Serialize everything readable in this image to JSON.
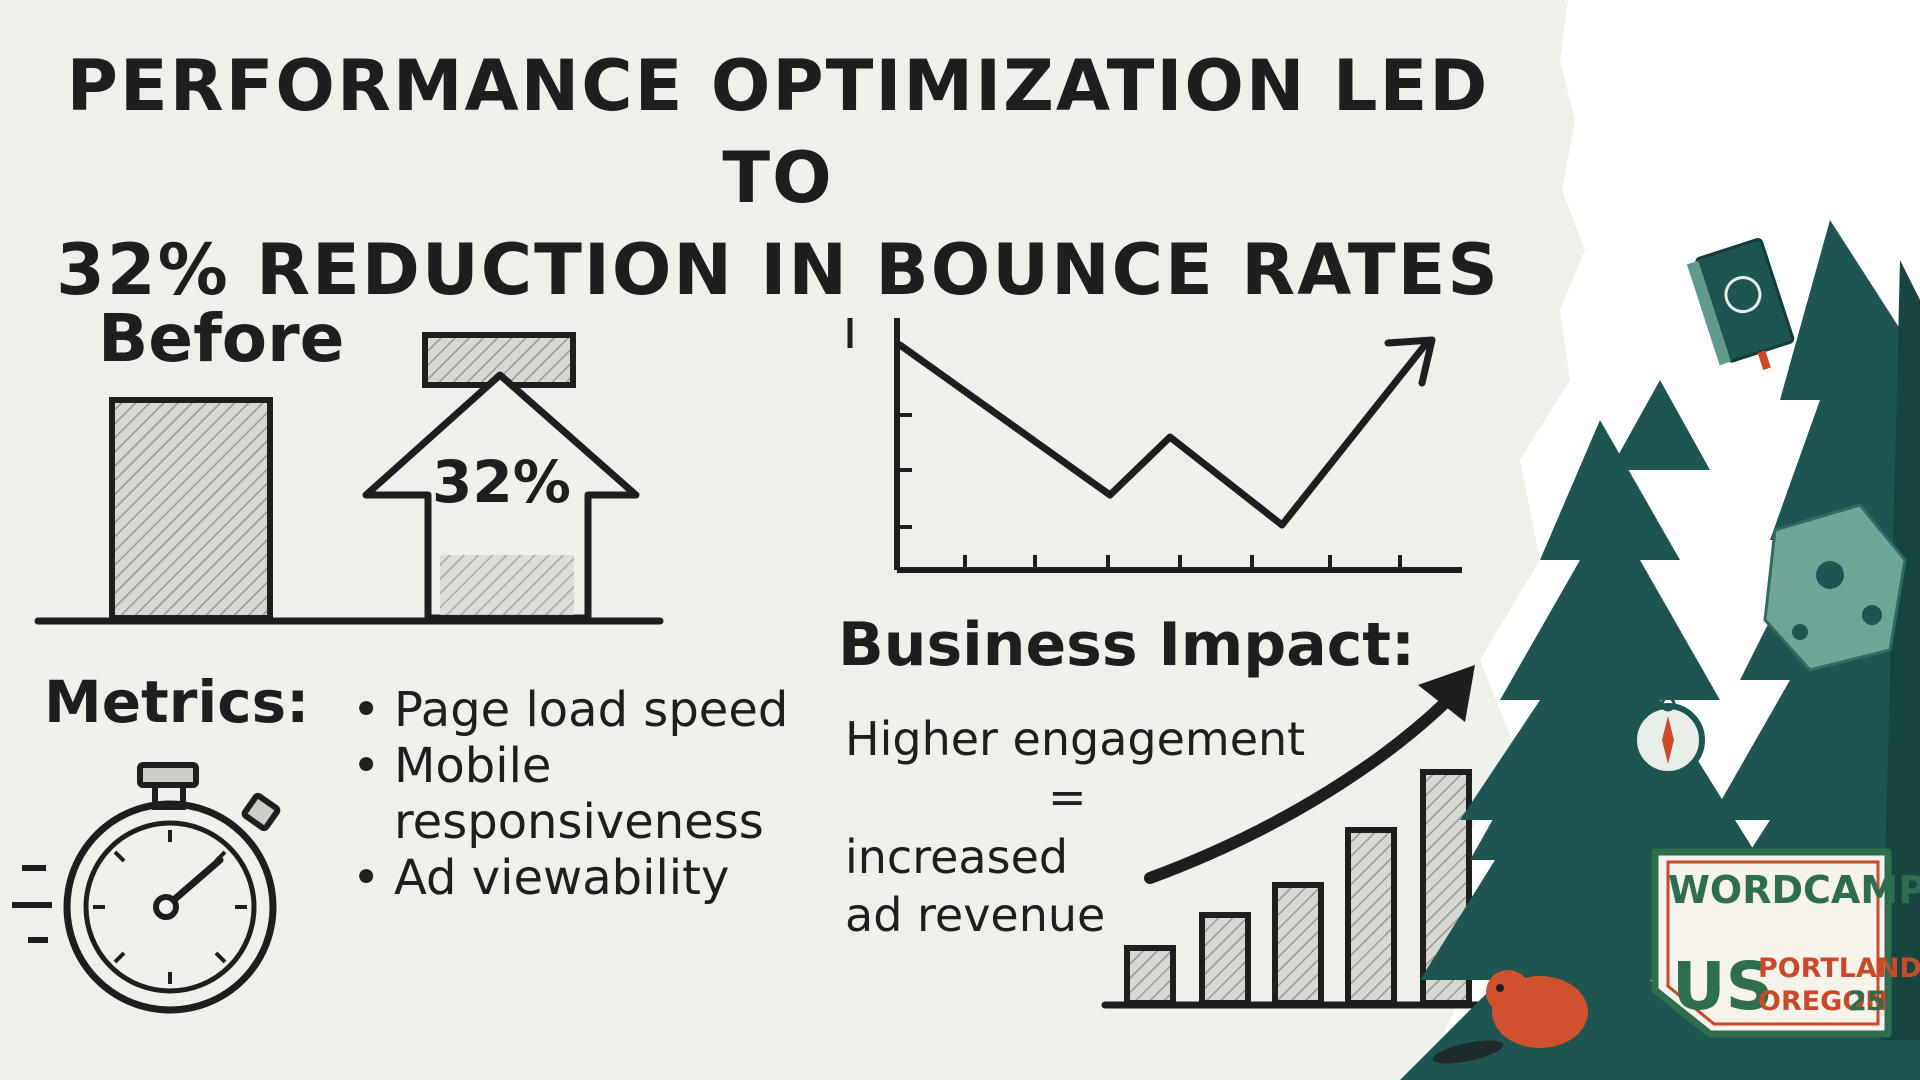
{
  "title": {
    "line1": "PERFORMANCE OPTIMIZATION LED TO",
    "line2": "32% REDUCTION IN BOUNCE RATES"
  },
  "before_label": "Before",
  "change_label": "32%",
  "metrics": {
    "label": "Metrics:",
    "items": [
      "Page load speed",
      "Mobile",
      "responsiveness",
      "Ad viewability"
    ]
  },
  "business": {
    "label": "Business Impact:",
    "line1": "Higher engagement",
    "equals": "=",
    "line2": "increased",
    "line3": "ad revenue"
  },
  "logo": {
    "word1": "WORDCAMP",
    "word2": "US",
    "city": "PORTLAND",
    "state": "OREGON",
    "year": "25"
  },
  "colors": {
    "paper": "#f1efe9",
    "ink": "#1e1e1e",
    "tree": "#1f5550",
    "tree_light": "#5f9a8c",
    "brand_green": "#2e6d4e",
    "brand_red": "#c94a2a"
  }
}
